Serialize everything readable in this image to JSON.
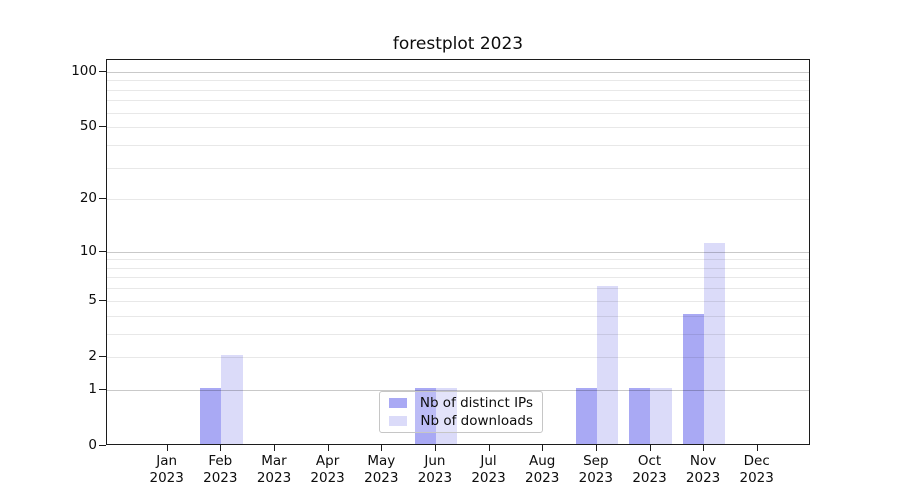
{
  "title": "forestplot 2023",
  "chart_data": {
    "type": "bar",
    "title": "forestplot 2023",
    "categories": [
      {
        "month": "Jan",
        "year": "2023"
      },
      {
        "month": "Feb",
        "year": "2023"
      },
      {
        "month": "Mar",
        "year": "2023"
      },
      {
        "month": "Apr",
        "year": "2023"
      },
      {
        "month": "May",
        "year": "2023"
      },
      {
        "month": "Jun",
        "year": "2023"
      },
      {
        "month": "Jul",
        "year": "2023"
      },
      {
        "month": "Aug",
        "year": "2023"
      },
      {
        "month": "Sep",
        "year": "2023"
      },
      {
        "month": "Oct",
        "year": "2023"
      },
      {
        "month": "Nov",
        "year": "2023"
      },
      {
        "month": "Dec",
        "year": "2023"
      }
    ],
    "series": [
      {
        "name": "Nb of distinct IPs",
        "color": "#a9a9f4",
        "values": [
          0,
          1,
          0,
          0,
          0,
          1,
          0,
          0,
          1,
          1,
          4,
          0
        ]
      },
      {
        "name": "Nb of downloads",
        "color": "#dbdbf9",
        "values": [
          0,
          2,
          0,
          0,
          0,
          1,
          0,
          0,
          6,
          1,
          11,
          0
        ]
      }
    ],
    "yscale": "log10(1+v)",
    "ylim": [
      0,
      116
    ],
    "yticks": [
      0,
      1,
      2,
      5,
      10,
      20,
      50,
      100
    ],
    "gridlines": {
      "major": [
        1,
        10,
        100
      ],
      "minor": [
        2,
        3,
        4,
        5,
        6,
        7,
        8,
        9,
        20,
        30,
        40,
        50,
        60,
        70,
        80,
        90
      ]
    },
    "legend": {
      "position": "lower center"
    },
    "colors": {
      "major_grid": "#c9c9c9",
      "minor_grid": "#e8e8e8",
      "spine": "#1c1c1c",
      "text": "#0d0d0d"
    }
  }
}
